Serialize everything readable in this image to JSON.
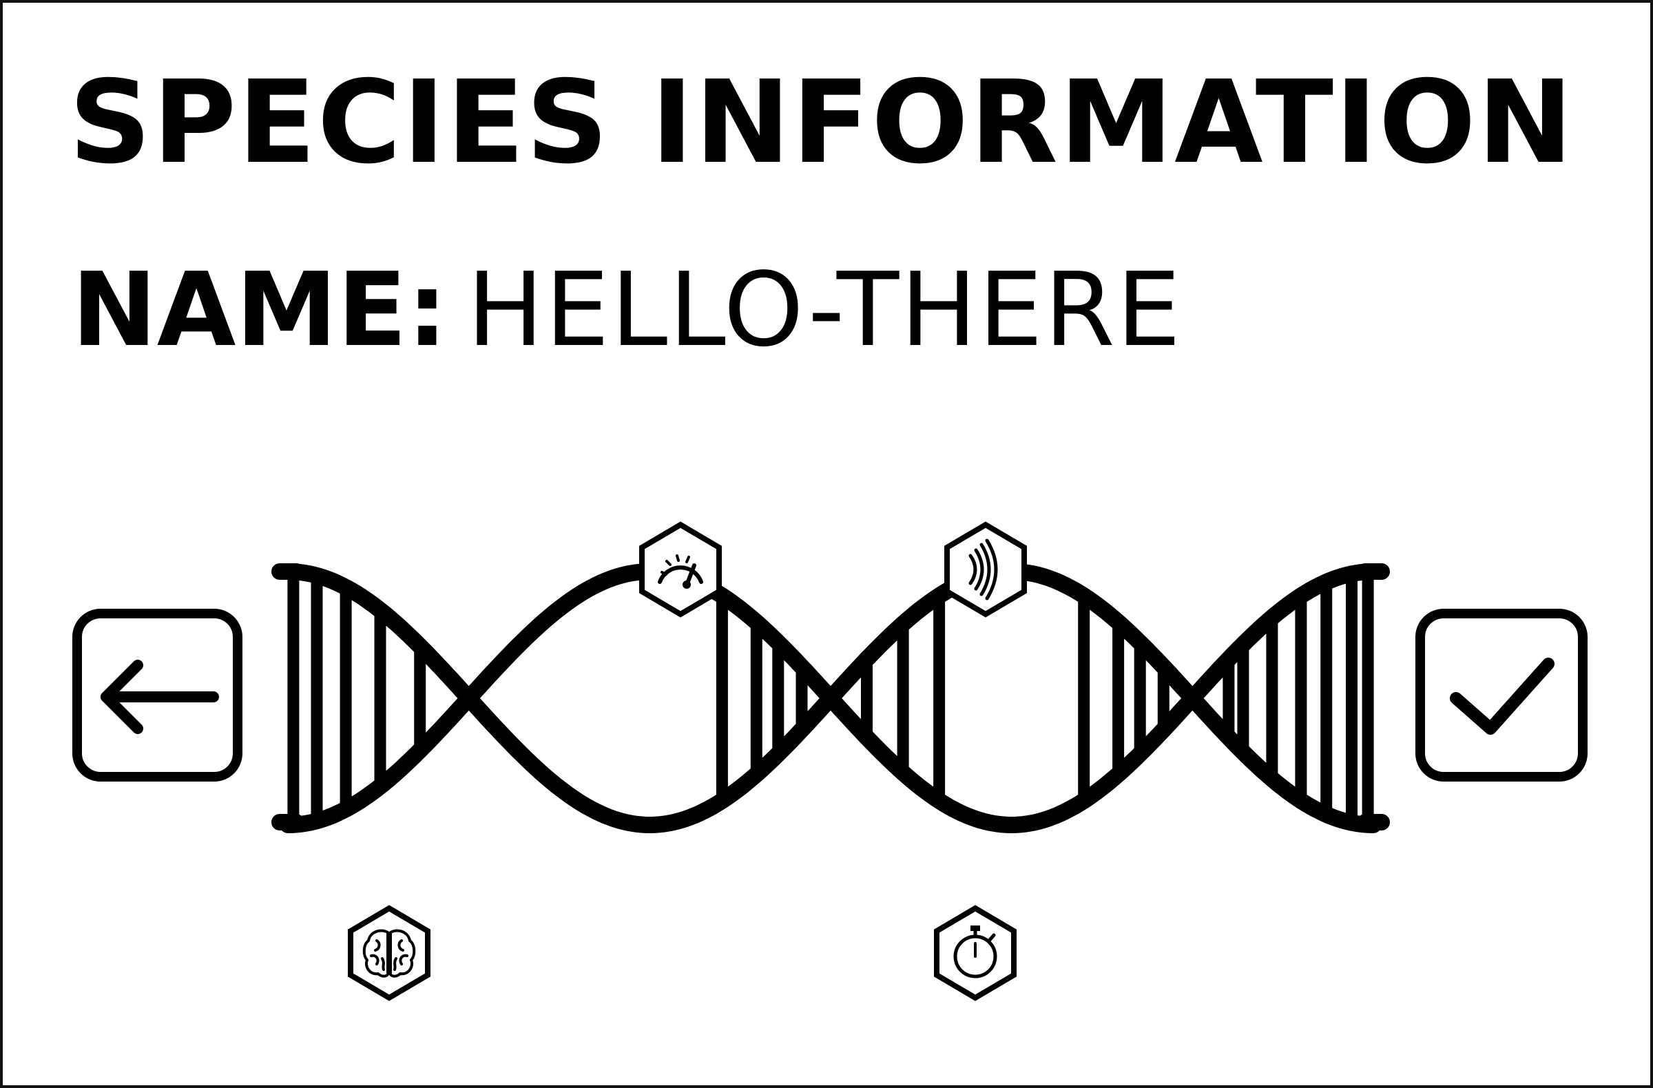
{
  "title": "SPECIES INFORMATION",
  "species": {
    "name_label": "NAME:",
    "name_value": "HELLO-THERE"
  },
  "colors": {
    "ink": "#000000",
    "background": "#ffffff"
  },
  "controls": {
    "back_icon": "arrow-left-icon",
    "confirm_icon": "checkmark-icon"
  },
  "traits": {
    "on_helix": [
      "speedometer-icon",
      "sound-waves-icon"
    ],
    "below_helix": [
      "brain-icon",
      "stopwatch-icon"
    ]
  }
}
